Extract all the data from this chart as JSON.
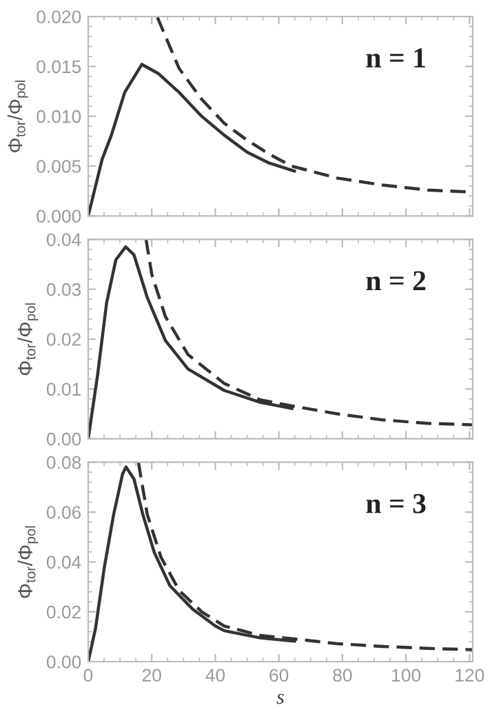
{
  "chart_data": [
    {
      "type": "line",
      "ylabel": "Φ$_{tor}$/Φ$_{pol}$",
      "annotations": [
        "n = 1"
      ],
      "xlim": [
        0,
        121
      ],
      "xticks": [
        0,
        20,
        40,
        60,
        80,
        100,
        120
      ],
      "ylim": [
        0,
        0.02
      ],
      "yticks": [
        {
          "value": 0,
          "label": "0.000"
        },
        0.005,
        {
          "value": 0.01,
          "label": "0.010"
        },
        0.015,
        {
          "value": 0.02,
          "label": "0.020"
        }
      ],
      "tick_labels": "y",
      "grid": false,
      "legend": false,
      "series": [
        {
          "color": "#333333",
          "line_style": "solid",
          "x": [
            0,
            4.4,
            7.3,
            11.5,
            16.9,
            22,
            28.6,
            35.7,
            42.8,
            50,
            57,
            64.9
          ],
          "values": [
            0,
            0.0057,
            0.0081,
            0.0124,
            0.0152,
            0.0143,
            0.0124,
            0.01,
            0.0081,
            0.0064,
            0.0053,
            0.0045
          ]
        },
        {
          "color": "#333333",
          "line_style": "dashed",
          "x": [
            21.8,
            28.6,
            35.7,
            42.8,
            50,
            57,
            64,
            78.4,
            92.6,
            106.8,
            121
          ],
          "values": [
            0.0199,
            0.0148,
            0.0117,
            0.0093,
            0.0076,
            0.0062,
            0.005,
            0.0038,
            0.0031,
            0.0026,
            0.0024
          ]
        }
      ]
    },
    {
      "type": "line",
      "ylabel": "Φ$_{tor}$/Φ$_{pol}$",
      "annotations": [
        "n = 2"
      ],
      "xlim": [
        0,
        121
      ],
      "xticks": [
        0,
        20,
        40,
        60,
        80,
        100,
        120
      ],
      "ylim": [
        0,
        0.04
      ],
      "yticks": [
        {
          "value": 0,
          "label": "0.00"
        },
        0.01,
        0.02,
        0.03,
        0.04
      ],
      "tick_labels": "y",
      "grid": false,
      "legend": false,
      "series": [
        {
          "color": "#333333",
          "line_style": "solid",
          "x": [
            0,
            3,
            5.8,
            8.7,
            11.8,
            14.4,
            18.6,
            24.3,
            31.4,
            42.8,
            54.2,
            64.1
          ],
          "values": [
            0,
            0.013,
            0.0273,
            0.0359,
            0.0385,
            0.0369,
            0.0283,
            0.0197,
            0.014,
            0.0097,
            0.0073,
            0.0061
          ]
        },
        {
          "color": "#333333",
          "line_style": "dashed",
          "x": [
            18.2,
            20,
            24.3,
            31.4,
            42.8,
            54.2,
            64.1,
            78.4,
            92.6,
            106.8,
            121
          ],
          "values": [
            0.04,
            0.033,
            0.0245,
            0.0169,
            0.0111,
            0.0078,
            0.0066,
            0.005,
            0.0038,
            0.0031,
            0.0028
          ]
        }
      ]
    },
    {
      "type": "line",
      "xlabel": "s",
      "ylabel": "Φ$_{tor}$/Φ$_{pol}$",
      "annotations": [
        "n = 3"
      ],
      "xlim": [
        0,
        121
      ],
      "xticks": [
        0,
        20,
        40,
        60,
        80,
        100,
        120
      ],
      "ylim": [
        0,
        0.08
      ],
      "yticks": [
        {
          "value": 0,
          "label": "0.00"
        },
        0.02,
        0.04,
        0.06,
        0.08
      ],
      "grid": false,
      "legend": false,
      "series": [
        {
          "color": "#333333",
          "line_style": "solid",
          "x": [
            0,
            2.3,
            5.1,
            8,
            10.8,
            11.9,
            14.4,
            17.2,
            20.8,
            25.7,
            32.9,
            40,
            42.8,
            54.2,
            64.9
          ],
          "values": [
            0,
            0.0133,
            0.038,
            0.059,
            0.0752,
            0.0781,
            0.0733,
            0.059,
            0.0438,
            0.0305,
            0.021,
            0.0143,
            0.0124,
            0.0095,
            0.0082
          ]
        },
        {
          "color": "#333333",
          "line_style": "dashed",
          "x": [
            15.8,
            18.6,
            22.9,
            28.6,
            35.7,
            42.8,
            54.2,
            65.6,
            78.4,
            92.6,
            106.8,
            121
          ],
          "values": [
            0.08,
            0.059,
            0.0419,
            0.0286,
            0.02,
            0.0143,
            0.0105,
            0.009,
            0.0072,
            0.0061,
            0.0053,
            0.0048
          ]
        }
      ]
    }
  ]
}
